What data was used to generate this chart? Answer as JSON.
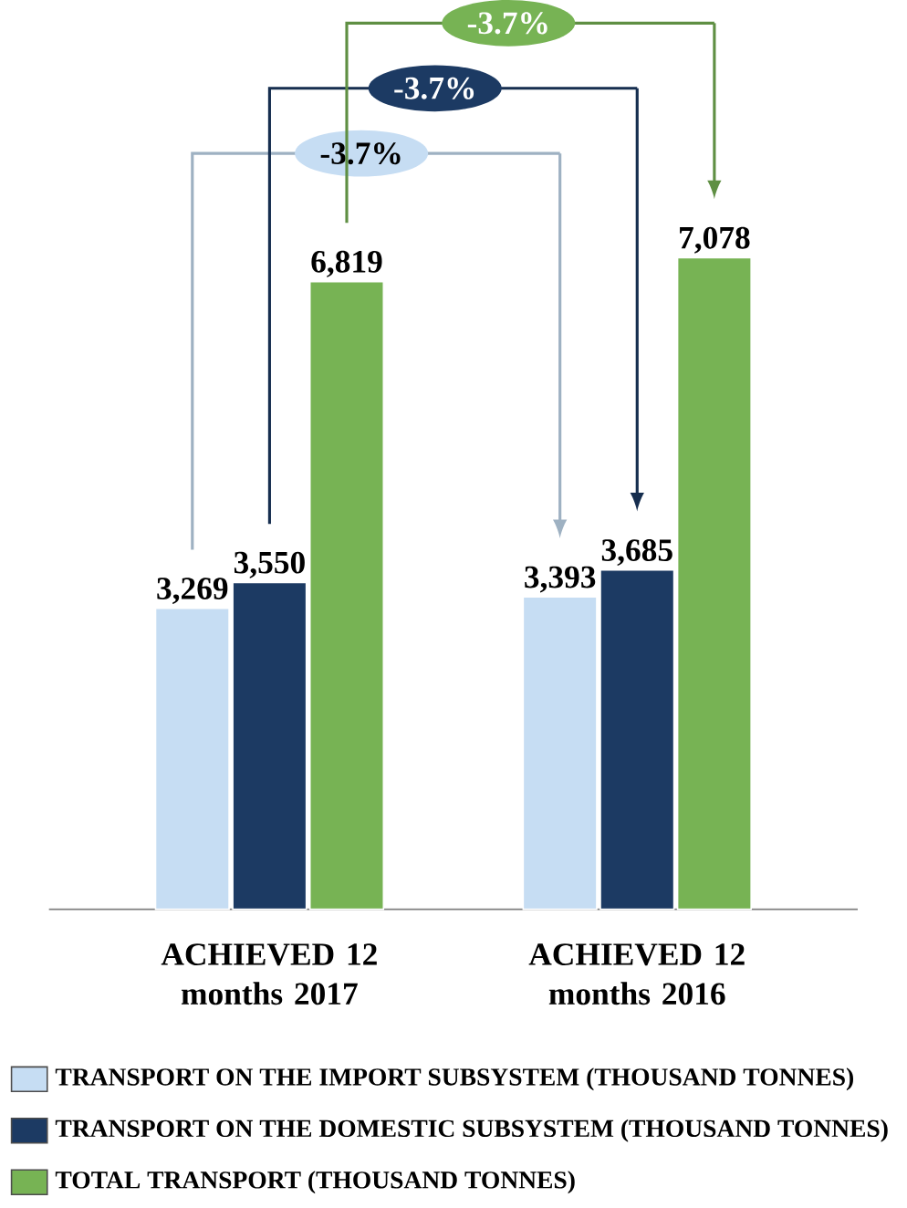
{
  "chart_data": {
    "type": "bar",
    "categories": [
      "ACHIEVED 12 months 2017",
      "ACHIEVED 12 months 2016"
    ],
    "series": [
      {
        "name": "TRANSPORT ON THE IMPORT SUBSYSTEM (THOUSAND TONNES)",
        "color": "#c6ddf3",
        "values": [
          3269,
          3393
        ],
        "value_labels": [
          "3,269",
          "3,393"
        ]
      },
      {
        "name": "TRANSPORT ON THE DOMESTIC SUBSYSTEM (THOUSAND TONNES)",
        "color": "#1c3a63",
        "values": [
          3550,
          3685
        ],
        "value_labels": [
          "3,550",
          "3,685"
        ]
      },
      {
        "name": "TOTAL TRANSPORT (THOUSAND TONNES)",
        "color": "#77b354",
        "values": [
          6819,
          7078
        ],
        "value_labels": [
          "6,819",
          "7,078"
        ]
      }
    ],
    "annotations": [
      "-3.7%",
      "-3.7%",
      "-3.7%"
    ],
    "legend": "bottom"
  }
}
